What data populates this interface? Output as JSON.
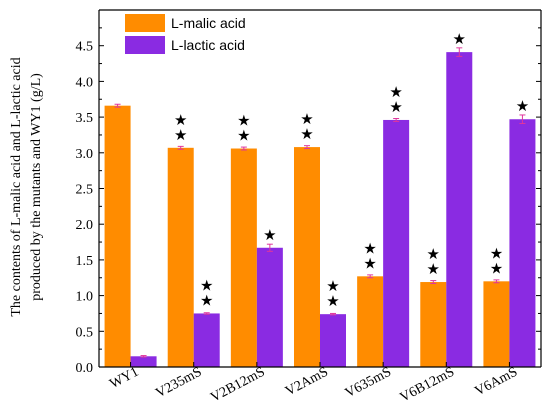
{
  "chart_data": {
    "type": "bar",
    "ylabel_line1": "The contents of L-malic acid and L-lactic acid",
    "ylabel_line2": "produced by the mutants and WY1 (g/L)",
    "xlabel": "",
    "ylim": [
      0,
      5.0
    ],
    "yticks": [
      0.0,
      0.5,
      1.0,
      1.5,
      2.0,
      2.5,
      3.0,
      3.5,
      4.0,
      4.5
    ],
    "grid": false,
    "legend_position": "top-left",
    "categories": [
      "WY1",
      "V235mS",
      "V2B12mS",
      "V2AmS",
      "V635mS",
      "V6B12mS",
      "V6AmS"
    ],
    "series": [
      {
        "name": "L-malic acid",
        "color": "#FF8C00",
        "values": [
          3.66,
          3.07,
          3.06,
          3.08,
          1.27,
          1.19,
          1.2
        ],
        "errors": [
          0.02,
          0.02,
          0.02,
          0.02,
          0.02,
          0.02,
          0.02
        ],
        "significance": [
          "",
          "★★",
          "★★",
          "★★",
          "★★",
          "★★",
          "★★"
        ]
      },
      {
        "name": "L-lactic acid",
        "color": "#8A2BE2",
        "values": [
          0.15,
          0.75,
          1.67,
          0.74,
          3.46,
          4.41,
          3.47
        ],
        "errors": [
          0.01,
          0.01,
          0.05,
          0.01,
          0.02,
          0.06,
          0.06
        ],
        "significance": [
          "",
          "★★",
          "★",
          "★★",
          "★★",
          "★",
          "★"
        ]
      }
    ]
  }
}
